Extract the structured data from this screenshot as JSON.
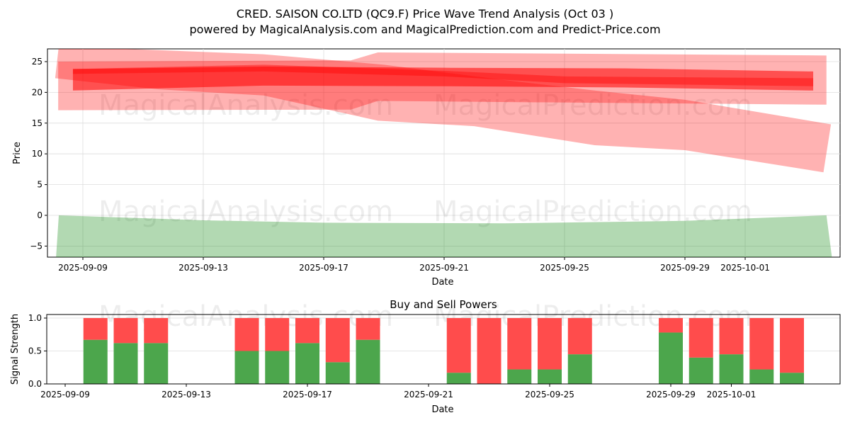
{
  "chart_data": [
    {
      "type": "area",
      "title": "CRED. SAISON CO.LTD (QC9.F) Price Wave Trend Analysis (Oct 03 )",
      "subtitle": "powered by MagicalAnalysis.com and MagicalPrediction.com and Predict-Price.com",
      "xlabel": "Date",
      "ylabel": "Price",
      "x_ticks": [
        {
          "day": 0,
          "label": "2025-09-09"
        },
        {
          "day": 4,
          "label": "2025-09-13"
        },
        {
          "day": 8,
          "label": "2025-09-17"
        },
        {
          "day": 12,
          "label": "2025-09-21"
        },
        {
          "day": 16,
          "label": "2025-09-25"
        },
        {
          "day": 20,
          "label": "2025-09-29"
        },
        {
          "day": 22,
          "label": "2025-10-01"
        }
      ],
      "y_ticks": [
        -5,
        0,
        5,
        10,
        15,
        20,
        25
      ],
      "ylim": [
        -6.8,
        27
      ],
      "xlim_days_from_2025_09_09": [
        -1.2,
        25.1
      ],
      "bands": [
        {
          "color": "#ff0000",
          "opacity": 0.3,
          "points": [
            [
              -0.8,
              27.5
            ],
            [
              6,
              26.2
            ],
            [
              10,
              24.5
            ],
            [
              14,
              22
            ],
            [
              17,
              20.3
            ],
            [
              20,
              18.8
            ],
            [
              24.85,
              14.8
            ],
            [
              24.6,
              7
            ],
            [
              20,
              10.6
            ],
            [
              17,
              11.4
            ],
            [
              13,
              14.5
            ],
            [
              9.8,
              15.4
            ],
            [
              6,
              19.5
            ],
            [
              2.5,
              20.5
            ],
            [
              -0.92,
              22.3
            ]
          ]
        },
        {
          "color": "#ff0000",
          "opacity": 0.3,
          "points": [
            [
              -0.82,
              25
            ],
            [
              8.9,
              25.2
            ],
            [
              9.8,
              26.5
            ],
            [
              24.7,
              26
            ],
            [
              24.7,
              18
            ],
            [
              9.8,
              18.6
            ],
            [
              8.9,
              17.2
            ],
            [
              -0.82,
              17.1
            ]
          ]
        },
        {
          "color": "#ff0000",
          "opacity": 0.55,
          "points": [
            [
              -0.33,
              23.8
            ],
            [
              6,
              24.2
            ],
            [
              12,
              24
            ],
            [
              18,
              23.9
            ],
            [
              24.26,
              23.4
            ],
            [
              24.26,
              20.3
            ],
            [
              18,
              20.8
            ],
            [
              12,
              21
            ],
            [
              6,
              21.1
            ],
            [
              -0.33,
              20.3
            ]
          ]
        },
        {
          "color": "#ff0000",
          "opacity": 0.4,
          "points": [
            [
              -0.33,
              23
            ],
            [
              6,
              23.4
            ],
            [
              12,
              22.6
            ],
            [
              16,
              21.5
            ],
            [
              24.26,
              21
            ],
            [
              24.26,
              22.3
            ],
            [
              16,
              22.6
            ],
            [
              12,
              23.5
            ],
            [
              6,
              24.5
            ],
            [
              -0.33,
              23.8
            ]
          ]
        },
        {
          "color": "#008000",
          "opacity": 0.3,
          "points": [
            [
              -0.8,
              0
            ],
            [
              4,
              -0.8
            ],
            [
              8,
              -1.2
            ],
            [
              14,
              -1.3
            ],
            [
              20,
              -0.9
            ],
            [
              24.7,
              0
            ],
            [
              24.9,
              -7.5
            ],
            [
              -0.9,
              -7.5
            ]
          ]
        }
      ]
    },
    {
      "type": "bar",
      "title": "Buy and Sell Powers",
      "xlabel": "Date",
      "ylabel": "Signal Strength",
      "ylim": [
        0,
        1.05
      ],
      "y_ticks": [
        "0.0",
        "0.5",
        "1.0"
      ],
      "x_ticks": [
        {
          "day": 0,
          "label": "2025-09-09"
        },
        {
          "day": 4,
          "label": "2025-09-13"
        },
        {
          "day": 8,
          "label": "2025-09-17"
        },
        {
          "day": 12,
          "label": "2025-09-21"
        },
        {
          "day": 16,
          "label": "2025-09-25"
        },
        {
          "day": 20,
          "label": "2025-09-29"
        },
        {
          "day": 22,
          "label": "2025-10-01"
        }
      ],
      "days": [
        1,
        2,
        3,
        6,
        7,
        8,
        9,
        10,
        13,
        14,
        15,
        16,
        17,
        20,
        21,
        22,
        23,
        24
      ],
      "series": [
        {
          "name": "Buy",
          "color": "#4ca64c",
          "values": [
            0.67,
            0.62,
            0.62,
            0.5,
            0.5,
            0.62,
            0.33,
            0.67,
            0.17,
            0.0,
            0.22,
            0.22,
            0.45,
            0.78,
            0.4,
            0.45,
            0.22,
            0.17
          ]
        },
        {
          "name": "Sell",
          "color": "#ff4c4c",
          "values": [
            0.33,
            0.38,
            0.38,
            0.5,
            0.5,
            0.38,
            0.67,
            0.33,
            0.83,
            1.0,
            0.78,
            0.78,
            0.55,
            0.22,
            0.6,
            0.55,
            0.78,
            0.83
          ]
        }
      ]
    }
  ],
  "watermarks": [
    "MagicalAnalysis.com",
    "MagicalPrediction.com"
  ]
}
